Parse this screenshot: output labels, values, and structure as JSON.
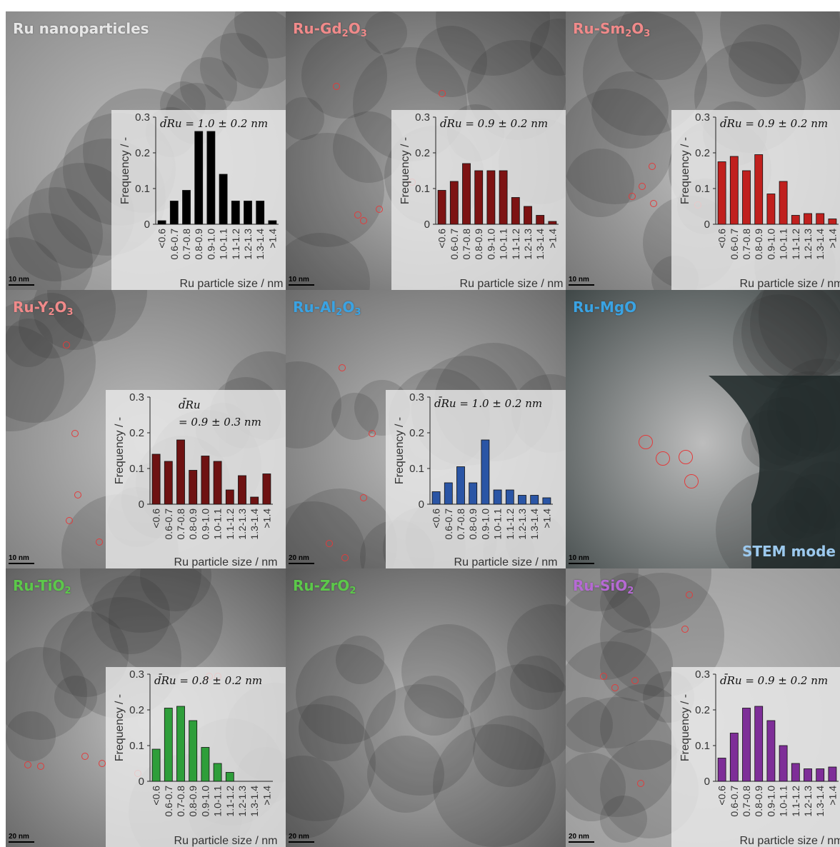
{
  "panels": [
    {
      "title_main": "Ru nanoparticles",
      "title_sub": "",
      "title_tail": "",
      "title_color": "#e6e6e6",
      "scale": "10 nm",
      "tone": "#8c8c8c"
    },
    {
      "title_main": "Ru-Gd",
      "title_sub": "2",
      "title_tail": "O",
      "title_sub2": "3",
      "title_color": "#f08a8a",
      "scale": "10 nm",
      "tone": "#5a5a5a"
    },
    {
      "title_main": "Ru-Sm",
      "title_sub": "2",
      "title_tail": "O",
      "title_sub2": "3",
      "title_color": "#f08a8a",
      "scale": "10 nm",
      "tone": "#6e6e6e"
    },
    {
      "title_main": "Ru-Y",
      "title_sub": "2",
      "title_tail": "O",
      "title_sub2": "3",
      "title_color": "#f08a8a",
      "scale": "10 nm",
      "tone": "#7a7a7a"
    },
    {
      "title_main": "Ru-Al",
      "title_sub": "2",
      "title_tail": "O",
      "title_sub2": "3",
      "title_color": "#3aa3e3",
      "scale": "20 nm",
      "tone": "#6a6a6a"
    },
    {
      "title_main": "Ru-MgO",
      "title_sub": "",
      "title_tail": "",
      "title_color": "#3aa3e3",
      "scale": "10 nm",
      "tone": "#3e4646"
    },
    {
      "title_main": "Ru-TiO",
      "title_sub": "2",
      "title_tail": "",
      "title_color": "#5cc84a",
      "scale": "20 nm",
      "tone": "#606060"
    },
    {
      "title_main": "Ru-ZrO",
      "title_sub": "2",
      "title_tail": "",
      "title_color": "#5cc84a",
      "scale": "20 nm",
      "tone": "#555555"
    },
    {
      "title_main": "Ru-SiO",
      "title_sub": "2",
      "title_tail": "",
      "title_color": "#b66ad4",
      "scale": "20 nm",
      "tone": "#9a9a9a"
    }
  ],
  "stem_label": "STEM mode",
  "chart_data": [
    {
      "type": "bar",
      "panel": 0,
      "color": "#000000",
      "annotation": "d̄Ru = 1.0 ± 0.2 nm",
      "ylabel": "Frequency / -",
      "xlabel": "Ru particle size / nm",
      "ylim": [
        0,
        0.3
      ],
      "yticks": [
        "0",
        "0.1",
        "0.2",
        "0.3"
      ],
      "categories": [
        "<0.6",
        "0.6-0.7",
        "0.7-0.8",
        "0.8-0.9",
        "0.9-1.0",
        "1.0-1.1",
        "1.1-1.2",
        "1.2-1.3",
        "1.3-1.4",
        ">1.4"
      ],
      "values": [
        0.01,
        0.065,
        0.095,
        0.26,
        0.26,
        0.14,
        0.065,
        0.065,
        0.065,
        0.01
      ]
    },
    {
      "type": "bar",
      "panel": 1,
      "color": "#7d1313",
      "annotation": "d̄Ru = 0.9 ± 0.2 nm",
      "ylabel": "Frequency / -",
      "xlabel": "Ru particle size / nm",
      "ylim": [
        0,
        0.3
      ],
      "yticks": [
        "0",
        "0.1",
        "0.2",
        "0.3"
      ],
      "categories": [
        "<0.6",
        "0.6-0.7",
        "0.7-0.8",
        "0.8-0.9",
        "0.9-1.0",
        "1.0-1.1",
        "1.1-1.2",
        "1.2-1.3",
        "1.3-1.4",
        ">1.4"
      ],
      "values": [
        0.095,
        0.12,
        0.17,
        0.15,
        0.15,
        0.15,
        0.075,
        0.05,
        0.025,
        0.008
      ]
    },
    {
      "type": "bar",
      "panel": 2,
      "color": "#c0201e",
      "annotation": "d̄Ru = 0.9 ± 0.2 nm",
      "ylabel": "Frequency / -",
      "xlabel": "Ru particle size / nm",
      "ylim": [
        0,
        0.3
      ],
      "yticks": [
        "0",
        "0.1",
        "0.2",
        "0.3"
      ],
      "categories": [
        "<0.6",
        "0.6-0.7",
        "0.7-0.8",
        "0.8-0.9",
        "0.9-1.0",
        "1.0-1.1",
        "1.1-1.2",
        "1.2-1.3",
        "1.3-1.4",
        ">1.4"
      ],
      "values": [
        0.175,
        0.19,
        0.15,
        0.195,
        0.085,
        0.12,
        0.025,
        0.03,
        0.03,
        0.015
      ]
    },
    {
      "type": "bar",
      "panel": 3,
      "color": "#6e1212",
      "annotation_l1": "d̄Ru",
      "annotation_l2": "= 0.9 ± 0.3 nm",
      "ylabel": "Frequency / -",
      "xlabel": "Ru particle size / nm",
      "ylim": [
        0,
        0.3
      ],
      "yticks": [
        "0",
        "0.1",
        "0.2",
        "0.3"
      ],
      "categories": [
        "<0.6",
        "0.6-0.7",
        "0.7-0.8",
        "0.8-0.9",
        "0.9-1.0",
        "1.0-1.1",
        "1.1-1.2",
        "1.2-1.3",
        "1.3-1.4",
        ">1.4"
      ],
      "values": [
        0.14,
        0.12,
        0.18,
        0.095,
        0.135,
        0.12,
        0.04,
        0.08,
        0.02,
        0.085
      ]
    },
    {
      "type": "bar",
      "panel": 4,
      "color": "#2a55a5",
      "annotation": "d̄Ru = 1.0 ± 0.2 nm",
      "ylabel": "Frequency / -",
      "xlabel": "Ru particle size / nm",
      "ylim": [
        0,
        0.3
      ],
      "yticks": [
        "0",
        "0.1",
        "0.2",
        "0.3"
      ],
      "categories": [
        "<0.6",
        "0.6-0.7",
        "0.7-0.8",
        "0.8-0.9",
        "0.9-1.0",
        "1.0-1.1",
        "1.1-1.2",
        "1.2-1.3",
        "1.3-1.4",
        ">1.4"
      ],
      "values": [
        0.035,
        0.06,
        0.105,
        0.06,
        0.18,
        0.04,
        0.04,
        0.025,
        0.025,
        0.018
      ]
    },
    {
      "type": "bar",
      "panel": 6,
      "color": "#2e9e3a",
      "annotation": "d̄Ru = 0.8 ± 0.2 nm",
      "ylabel": "Frequency / -",
      "xlabel": "Ru particle size / nm",
      "ylim": [
        0,
        0.3
      ],
      "yticks": [
        "0",
        "0.1",
        "0.2",
        "0.3"
      ],
      "categories": [
        "<0.6",
        "0.6-0.7",
        "0.7-0.8",
        "0.8-0.9",
        "0.9-1.0",
        "1.0-1.1",
        "1.1-1.2",
        "1.2-1.3",
        "1.3-1.4",
        ">1.4"
      ],
      "values": [
        0.09,
        0.205,
        0.21,
        0.17,
        0.095,
        0.05,
        0.025,
        0,
        0,
        0
      ]
    },
    {
      "type": "bar",
      "panel": 8,
      "color": "#7e2e98",
      "annotation": "d̄Ru = 0.9 ± 0.2 nm",
      "ylabel": "Frequency / -",
      "xlabel": "Ru particle size / nm",
      "ylim": [
        0,
        0.3
      ],
      "yticks": [
        "0",
        "0.1",
        "0.2",
        "0.3"
      ],
      "categories": [
        "<0.6",
        "0.6-0.7",
        "0.7-0.8",
        "0.8-0.9",
        "0.9-1.0",
        "1.0-1.1",
        "1.1-1.2",
        "1.2-1.3",
        "1.3-1.4",
        ">1.4"
      ],
      "values": [
        0.065,
        0.135,
        0.205,
        0.21,
        0.17,
        0.1,
        0.05,
        0.035,
        0.035,
        0.04
      ]
    }
  ]
}
